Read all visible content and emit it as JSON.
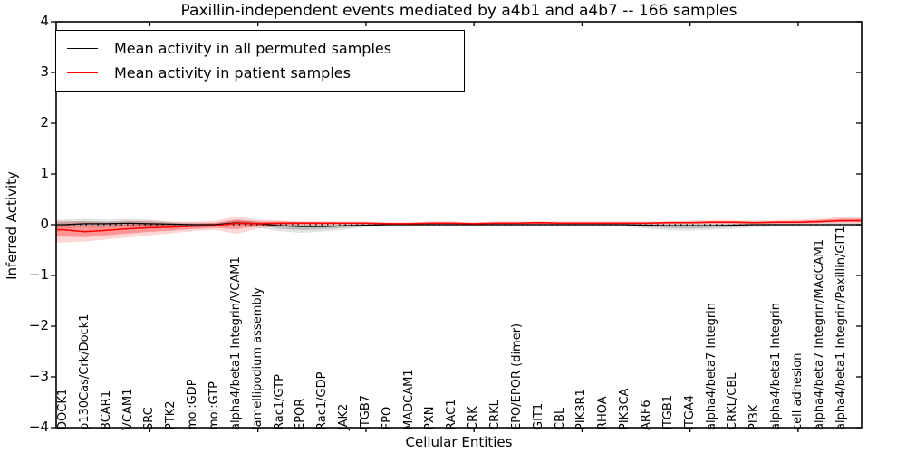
{
  "title": "Paxillin-independent events mediated by a4b1 and a4b7 -- 166 samples",
  "axes": {
    "ylabel": "Inferred Activity",
    "xlabel": "Cellular Entities",
    "ytick_labels": [
      "4",
      "3",
      "2",
      "1",
      "0",
      "−1",
      "−2",
      "−3",
      "−4"
    ]
  },
  "legend": {
    "entries": [
      {
        "label": "Mean activity in all permuted samples",
        "color": "#000000"
      },
      {
        "label": "Mean activity in patient samples",
        "color": "#ff0000"
      }
    ]
  },
  "chart_data": {
    "type": "line",
    "title": "Paxillin-independent events mediated by a4b1 and a4b7 -- 166 samples",
    "xlabel": "Cellular Entities",
    "ylabel": "Inferred Activity",
    "ylim": [
      -4,
      4
    ],
    "yticks": [
      4,
      3,
      2,
      1,
      0,
      -1,
      -2,
      -3,
      -4
    ],
    "zero_reference_line": true,
    "grid": false,
    "legend_position": "upper left",
    "categories": [
      "DOCK1",
      "p130Cas/Crk/Dock1",
      "BCAR1",
      "VCAM1",
      "SRC",
      "PTK2",
      "mol:GDP",
      "mol:GTP",
      "alpha4/beta1 Integrin/VCAM1",
      "lamellipodium assembly",
      "Rac1/GTP",
      "EPOR",
      "Rac1/GDP",
      "JAK2",
      "ITGB7",
      "EPO",
      "MADCAM1",
      "PXN",
      "RAC1",
      "CRK",
      "CRKL",
      "EPO/EPOR (dimer)",
      "GIT1",
      "CBL",
      "PIK3R1",
      "RHOA",
      "PIK3CA",
      "ARF6",
      "ITGB1",
      "ITGA4",
      "alpha4/beta7 Integrin",
      "CRKL/CBL",
      "PI3K",
      "alpha4/beta1 Integrin",
      "cell adhesion",
      "alpha4/beta7 Integrin/MAdCAM1",
      "alpha4/beta1 Integrin/Paxillin/GIT1"
    ],
    "series": [
      {
        "name": "Mean activity in all permuted samples",
        "color": "#000000",
        "band_color": "0,0,0",
        "mean": [
          0.0,
          0.02,
          0.02,
          0.03,
          0.02,
          0.01,
          0.0,
          0.0,
          0.04,
          0.02,
          -0.02,
          -0.04,
          -0.04,
          -0.02,
          -0.01,
          0.0,
          0.0,
          0.0,
          0.0,
          0.0,
          0.0,
          0.0,
          0.0,
          0.0,
          0.0,
          0.0,
          0.0,
          -0.01,
          -0.02,
          -0.02,
          -0.02,
          -0.01,
          0.0,
          0.0,
          0.0,
          0.0,
          0.0
        ],
        "upper": [
          0.1,
          0.12,
          0.1,
          0.12,
          0.1,
          0.06,
          0.05,
          0.04,
          0.09,
          0.07,
          0.03,
          0.02,
          0.02,
          0.02,
          0.03,
          0.03,
          0.03,
          0.03,
          0.03,
          0.03,
          0.03,
          0.03,
          0.03,
          0.03,
          0.03,
          0.03,
          0.03,
          0.03,
          0.03,
          0.03,
          0.03,
          0.03,
          0.03,
          0.03,
          0.03,
          0.03,
          0.04
        ],
        "lower": [
          -0.08,
          -0.06,
          -0.06,
          -0.05,
          -0.06,
          -0.06,
          -0.05,
          -0.04,
          -0.02,
          -0.06,
          -0.13,
          -0.16,
          -0.14,
          -0.1,
          -0.05,
          -0.03,
          -0.03,
          -0.03,
          -0.03,
          -0.03,
          -0.03,
          -0.03,
          -0.03,
          -0.03,
          -0.03,
          -0.03,
          -0.04,
          -0.08,
          -0.11,
          -0.12,
          -0.1,
          -0.08,
          -0.06,
          -0.04,
          -0.04,
          -0.04,
          -0.04
        ]
      },
      {
        "name": "Mean activity in patient samples",
        "color": "#ff0000",
        "band_color": "255,0,0",
        "mean": [
          -0.1,
          -0.14,
          -0.11,
          -0.08,
          -0.06,
          -0.05,
          -0.03,
          -0.02,
          0.03,
          0.02,
          0.03,
          0.03,
          0.03,
          0.03,
          0.03,
          0.02,
          0.02,
          0.03,
          0.03,
          0.02,
          0.03,
          0.03,
          0.04,
          0.03,
          0.03,
          0.03,
          0.03,
          0.03,
          0.04,
          0.04,
          0.05,
          0.05,
          0.04,
          0.05,
          0.05,
          0.06,
          0.08
        ],
        "upper": [
          0.08,
          0.06,
          0.05,
          0.07,
          0.08,
          0.06,
          0.06,
          0.08,
          0.16,
          0.1,
          0.09,
          0.07,
          0.07,
          0.06,
          0.06,
          0.05,
          0.05,
          0.06,
          0.06,
          0.05,
          0.06,
          0.06,
          0.07,
          0.06,
          0.06,
          0.06,
          0.06,
          0.06,
          0.07,
          0.08,
          0.09,
          0.09,
          0.08,
          0.09,
          0.1,
          0.12,
          0.15
        ],
        "lower": [
          -0.35,
          -0.33,
          -0.29,
          -0.25,
          -0.21,
          -0.17,
          -0.13,
          -0.1,
          -0.18,
          -0.08,
          -0.03,
          -0.01,
          -0.01,
          0.0,
          0.0,
          -0.01,
          0.0,
          0.0,
          0.0,
          0.0,
          0.0,
          0.0,
          0.0,
          0.0,
          0.0,
          0.0,
          0.0,
          0.0,
          0.01,
          0.01,
          0.01,
          0.01,
          0.0,
          0.01,
          0.01,
          0.02,
          0.03
        ]
      }
    ]
  }
}
